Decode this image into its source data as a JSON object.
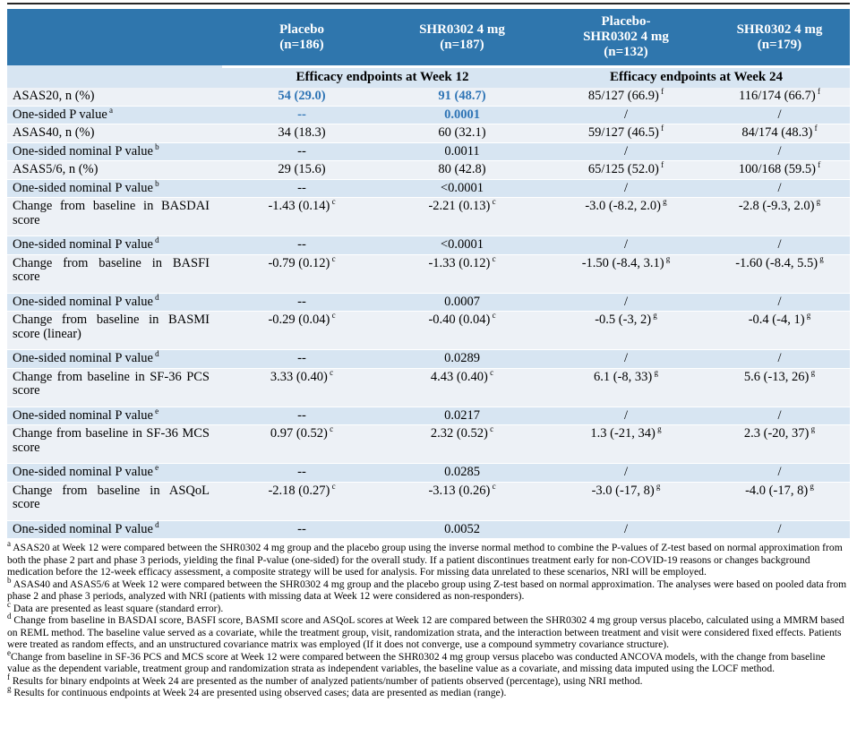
{
  "colors": {
    "header_bg": "#2F76AD",
    "header_text": "#FFFFFF",
    "row_blue": "#D7E5F2",
    "row_light": "#EDF1F6",
    "highlight_blue": "#2E74B5",
    "top_rule": "#262626"
  },
  "table": {
    "header_columns": [
      [
        ""
      ],
      [
        "Placebo",
        "(n=186)"
      ],
      [
        "SHR0302 4 mg",
        "(n=187)"
      ],
      [
        "Placebo-",
        "SHR0302 4 mg",
        "(n=132)"
      ],
      [
        "SHR0302 4 mg",
        "(n=179)"
      ]
    ],
    "subheader": {
      "week12": "Efficacy endpoints at Week 12",
      "week24": "Efficacy endpoints at Week 24"
    },
    "rows": [
      {
        "label": "ASAS20, n (%)",
        "label_sup": "",
        "shade": "light",
        "tall": false,
        "cells": [
          {
            "v": "54 (29.0)",
            "s": "",
            "hl": true
          },
          {
            "v": "91 (48.7)",
            "s": "",
            "hl": true
          },
          {
            "v": "85/127 (66.9)",
            "s": "f",
            "hl": false
          },
          {
            "v": "116/174 (66.7)",
            "s": "f",
            "hl": false
          }
        ]
      },
      {
        "label": "One-sided P value",
        "label_sup": "a",
        "shade": "blue",
        "tall": false,
        "cells": [
          {
            "v": "--",
            "s": "",
            "hl": true
          },
          {
            "v": "0.0001",
            "s": "",
            "hl": true
          },
          {
            "v": "/",
            "s": "",
            "hl": false
          },
          {
            "v": "/",
            "s": "",
            "hl": false
          }
        ]
      },
      {
        "label": "ASAS40, n (%)",
        "label_sup": "",
        "shade": "light",
        "tall": false,
        "cells": [
          {
            "v": "34 (18.3)",
            "s": "",
            "hl": false
          },
          {
            "v": "60 (32.1)",
            "s": "",
            "hl": false
          },
          {
            "v": "59/127 (46.5)",
            "s": "f",
            "hl": false
          },
          {
            "v": "84/174 (48.3)",
            "s": "f",
            "hl": false
          }
        ]
      },
      {
        "label": "One-sided nominal P value",
        "label_sup": "b",
        "shade": "blue",
        "tall": false,
        "cells": [
          {
            "v": "--",
            "s": "",
            "hl": false
          },
          {
            "v": "0.0011",
            "s": "",
            "hl": false
          },
          {
            "v": "/",
            "s": "",
            "hl": false
          },
          {
            "v": "/",
            "s": "",
            "hl": false
          }
        ]
      },
      {
        "label": "ASAS5/6, n (%)",
        "label_sup": "",
        "shade": "light",
        "tall": false,
        "cells": [
          {
            "v": "29 (15.6)",
            "s": "",
            "hl": false
          },
          {
            "v": "80 (42.8)",
            "s": "",
            "hl": false
          },
          {
            "v": "65/125 (52.0)",
            "s": "f",
            "hl": false
          },
          {
            "v": "100/168 (59.5)",
            "s": "f",
            "hl": false
          }
        ]
      },
      {
        "label": "One-sided nominal P value",
        "label_sup": "b",
        "shade": "blue",
        "tall": false,
        "cells": [
          {
            "v": "--",
            "s": "",
            "hl": false
          },
          {
            "v": "<0.0001",
            "s": "",
            "hl": false
          },
          {
            "v": "/",
            "s": "",
            "hl": false
          },
          {
            "v": "/",
            "s": "",
            "hl": false
          }
        ]
      },
      {
        "label": "Change from baseline in BASDAI score",
        "label_sup": "",
        "shade": "light",
        "tall": true,
        "cells": [
          {
            "v": "-1.43 (0.14)",
            "s": "c",
            "hl": false
          },
          {
            "v": "-2.21 (0.13)",
            "s": "c",
            "hl": false
          },
          {
            "v": "-3.0 (-8.2, 2.0)",
            "s": "g",
            "hl": false
          },
          {
            "v": "-2.8 (-9.3, 2.0)",
            "s": "g",
            "hl": false
          }
        ]
      },
      {
        "label": "One-sided nominal P value",
        "label_sup": "d",
        "shade": "blue",
        "tall": false,
        "cells": [
          {
            "v": "--",
            "s": "",
            "hl": false
          },
          {
            "v": "<0.0001",
            "s": "",
            "hl": false
          },
          {
            "v": "/",
            "s": "",
            "hl": false
          },
          {
            "v": "/",
            "s": "",
            "hl": false
          }
        ]
      },
      {
        "label": "Change from baseline in BASFI score",
        "label_sup": "",
        "shade": "light",
        "tall": true,
        "cells": [
          {
            "v": "-0.79 (0.12)",
            "s": "c",
            "hl": false
          },
          {
            "v": "-1.33 (0.12)",
            "s": "c",
            "hl": false
          },
          {
            "v": "-1.50 (-8.4, 3.1)",
            "s": "g",
            "hl": false
          },
          {
            "v": "-1.60 (-8.4, 5.5)",
            "s": "g",
            "hl": false
          }
        ]
      },
      {
        "label": "One-sided nominal P value",
        "label_sup": "d",
        "shade": "blue",
        "tall": false,
        "cells": [
          {
            "v": "--",
            "s": "",
            "hl": false
          },
          {
            "v": "0.0007",
            "s": "",
            "hl": false
          },
          {
            "v": "/",
            "s": "",
            "hl": false
          },
          {
            "v": "/",
            "s": "",
            "hl": false
          }
        ]
      },
      {
        "label": "Change from baseline in BASMI score (linear)",
        "label_sup": "",
        "shade": "light",
        "tall": true,
        "cells": [
          {
            "v": "-0.29 (0.04)",
            "s": "c",
            "hl": false
          },
          {
            "v": "-0.40 (0.04)",
            "s": "c",
            "hl": false
          },
          {
            "v": "-0.5 (-3, 2)",
            "s": "g",
            "hl": false
          },
          {
            "v": "-0.4 (-4, 1)",
            "s": "g",
            "hl": false
          }
        ]
      },
      {
        "label": "One-sided nominal P value",
        "label_sup": "d",
        "shade": "blue",
        "tall": false,
        "cells": [
          {
            "v": "--",
            "s": "",
            "hl": false
          },
          {
            "v": "0.0289",
            "s": "",
            "hl": false
          },
          {
            "v": "/",
            "s": "",
            "hl": false
          },
          {
            "v": "/",
            "s": "",
            "hl": false
          }
        ]
      },
      {
        "label": "Change from baseline in SF-36 PCS score",
        "label_sup": "",
        "shade": "light",
        "tall": true,
        "cells": [
          {
            "v": "3.33 (0.40)",
            "s": "c",
            "hl": false
          },
          {
            "v": "4.43 (0.40)",
            "s": "c",
            "hl": false
          },
          {
            "v": "6.1 (-8, 33)",
            "s": "g",
            "hl": false
          },
          {
            "v": "5.6 (-13, 26)",
            "s": "g",
            "hl": false
          }
        ]
      },
      {
        "label": "One-sided nominal P value",
        "label_sup": "e",
        "shade": "blue",
        "tall": false,
        "cells": [
          {
            "v": "--",
            "s": "",
            "hl": false
          },
          {
            "v": "0.0217",
            "s": "",
            "hl": false
          },
          {
            "v": "/",
            "s": "",
            "hl": false
          },
          {
            "v": "/",
            "s": "",
            "hl": false
          }
        ]
      },
      {
        "label": "Change from baseline in SF-36 MCS score",
        "label_sup": "",
        "shade": "light",
        "tall": true,
        "cells": [
          {
            "v": "0.97 (0.52)",
            "s": "c",
            "hl": false
          },
          {
            "v": "2.32 (0.52)",
            "s": "c",
            "hl": false
          },
          {
            "v": "1.3 (-21, 34)",
            "s": "g",
            "hl": false
          },
          {
            "v": "2.3 (-20, 37)",
            "s": "g",
            "hl": false
          }
        ]
      },
      {
        "label": "One-sided nominal P value",
        "label_sup": "e",
        "shade": "blue",
        "tall": false,
        "cells": [
          {
            "v": "--",
            "s": "",
            "hl": false
          },
          {
            "v": "0.0285",
            "s": "",
            "hl": false
          },
          {
            "v": "/",
            "s": "",
            "hl": false
          },
          {
            "v": "/",
            "s": "",
            "hl": false
          }
        ]
      },
      {
        "label": "Change from baseline in ASQoL score",
        "label_sup": "",
        "shade": "light",
        "tall": true,
        "cells": [
          {
            "v": "-2.18 (0.27)",
            "s": "c",
            "hl": false
          },
          {
            "v": "-3.13 (0.26)",
            "s": "c",
            "hl": false
          },
          {
            "v": "-3.0 (-17, 8)",
            "s": "g",
            "hl": false
          },
          {
            "v": "-4.0 (-17, 8)",
            "s": "g",
            "hl": false
          }
        ]
      },
      {
        "label": "One-sided nominal P value",
        "label_sup": "d",
        "shade": "blue",
        "tall": false,
        "cells": [
          {
            "v": "--",
            "s": "",
            "hl": false
          },
          {
            "v": "0.0052",
            "s": "",
            "hl": false
          },
          {
            "v": "/",
            "s": "",
            "hl": false
          },
          {
            "v": "/",
            "s": "",
            "hl": false
          }
        ]
      }
    ]
  },
  "footnotes": [
    {
      "marker": "a",
      "space": true,
      "text": "ASAS20 at Week 12 were compared between the SHR0302 4 mg group and the placebo group using the inverse normal method to combine the P-values of Z-test based on normal approximation from both the phase 2 part and phase 3 periods, yielding the final P-value (one-sided) for the overall study. If a patient discontinues treatment early for non-COVID-19 reasons or changes background medication before the 12-week efficacy assessment, a composite strategy will be used for analysis. For missing data unrelated to these scenarios, NRI will be employed."
    },
    {
      "marker": "b",
      "space": true,
      "text": "ASAS40 and ASAS5/6 at Week 12 were compared between the SHR0302 4 mg group and the placebo group using Z-test based on normal approximation. The analyses were based on pooled data from phase 2 and phase 3 periods, analyzed with NRI (patients with missing data at Week 12 were considered as non-responders)."
    },
    {
      "marker": "c",
      "space": true,
      "text": "Data are presented as least square (standard error)."
    },
    {
      "marker": "d",
      "space": true,
      "text": "Change from baseline in BASDAI score, BASFI score, BASMI score and ASQoL scores at Week 12 are compared between the SHR0302 4 mg group versus placebo, calculated using a MMRM based on REML method. The baseline value served as a covariate, while the treatment group, visit, randomization strata, and the interaction between treatment and visit were considered fixed effects. Patients were treated as random effects, and an unstructured covariance matrix was employed (If it does not converge, use a compound symmetry covariance structure)."
    },
    {
      "marker": "e",
      "space": false,
      "text": "Change from baseline in SF-36 PCS and MCS score at Week 12 were compared between the SHR0302 4 mg group versus placebo was conducted ANCOVA models, with the change from baseline value as the dependent variable, treatment group and randomization strata as independent variables, the baseline value as a covariate, and missing data imputed using the LOCF method."
    },
    {
      "marker": "f",
      "space": true,
      "text": "Results for binary endpoints at Week 24 are presented as the number of analyzed patients/number of patients observed (percentage), using NRI method."
    },
    {
      "marker": "g",
      "space": true,
      "text": "Results for continuous endpoints at Week 24 are presented using observed cases; data are presented as median (range)."
    }
  ]
}
